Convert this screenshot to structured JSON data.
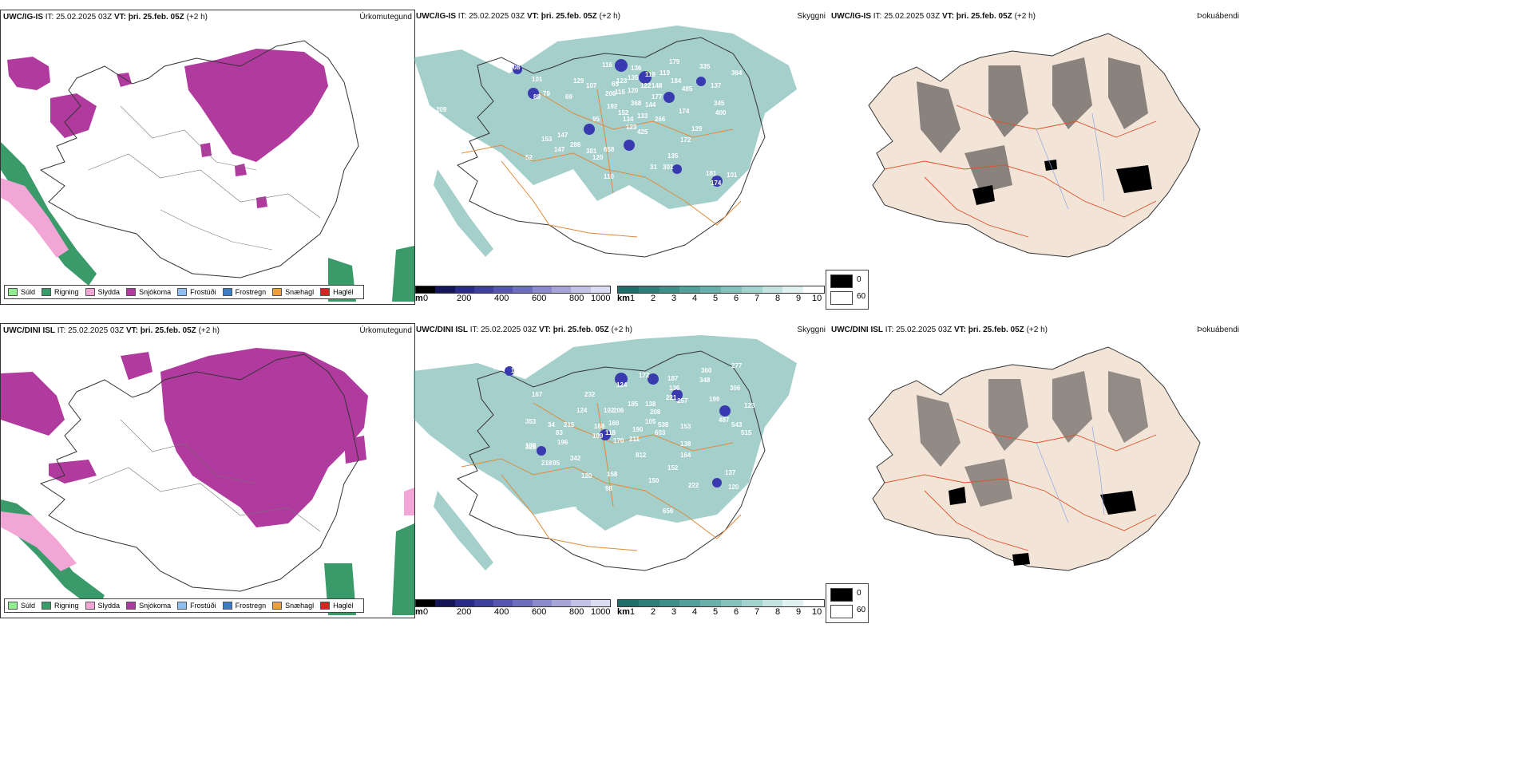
{
  "rows": [
    {
      "precip": {
        "model": "UWC/IG-IS",
        "it_label": "IT:",
        "it_value": "25.02.2025 03Z",
        "vt_label": "VT:",
        "vt_value": "þri. 25.feb. 05Z",
        "lead": "(+2 h)",
        "ptype_label": "Úrkomutegund"
      },
      "cloud": {
        "model": "UWC/IG-IS",
        "it_label": "IT:",
        "it_value": "25.02.2025 03Z",
        "vt_label": "VT:",
        "vt_value": "þri. 25.feb. 05Z",
        "lead": "(+2 h)",
        "right_label": "Skyggni",
        "labels": [
          "108",
          "101",
          "79",
          "209",
          "129",
          "116",
          "123",
          "206",
          "136",
          "135",
          "118",
          "119",
          "179",
          "184",
          "335",
          "364",
          "107",
          "65",
          "115",
          "120",
          "122",
          "148",
          "485",
          "137",
          "177",
          "88",
          "69",
          "192",
          "368",
          "144",
          "152",
          "133",
          "266",
          "174",
          "345",
          "400",
          "95",
          "134",
          "123",
          "425",
          "147",
          "129",
          "153",
          "147",
          "286",
          "381",
          "658",
          "172",
          "120",
          "52",
          "135",
          "301",
          "31",
          "110",
          "181",
          "174",
          "101"
        ]
      },
      "fog": {
        "model": "UWC/IG-IS",
        "it_label": "IT:",
        "it_value": "25.02.2025 03Z",
        "vt_label": "VT:",
        "vt_value": "þri. 25.feb. 05Z",
        "lead": "(+2 h)",
        "right_label": "Þokuábendi"
      }
    },
    {
      "precip": {
        "model": "UWC/DINI ISL",
        "it_label": "IT:",
        "it_value": "25.02.2025 03Z",
        "vt_label": "VT:",
        "vt_value": "þri. 25.feb. 05Z",
        "lead": "(+2 h)",
        "ptype_label": "Úrkomutegund"
      },
      "cloud": {
        "model": "UWC/DINI ISL",
        "it_label": "IT:",
        "it_value": "25.02.2025 03Z",
        "vt_label": "VT:",
        "vt_value": "þri. 25.feb. 05Z",
        "lead": "(+2 h)",
        "right_label": "Skyggni",
        "labels": [
          "58",
          "123",
          "167",
          "232",
          "124",
          "172",
          "187",
          "360",
          "277",
          "348",
          "306",
          "136",
          "221",
          "257",
          "199",
          "123",
          "353",
          "124",
          "102",
          "206",
          "185",
          "138",
          "487",
          "543",
          "208",
          "215",
          "83",
          "168",
          "109",
          "105",
          "538",
          "153",
          "34",
          "196",
          "160",
          "118",
          "190",
          "603",
          "515",
          "189",
          "328",
          "218",
          "342",
          "170",
          "211",
          "138",
          "95",
          "120",
          "812",
          "164",
          "158",
          "152",
          "98",
          "150",
          "42",
          "222",
          "137",
          "120",
          "656",
          "40",
          "301"
        ]
      },
      "fog": {
        "model": "UWC/DINI ISL",
        "it_label": "IT:",
        "it_value": "25.02.2025 03Z",
        "vt_label": "VT:",
        "vt_value": "þri. 25.feb. 05Z",
        "lead": "(+2 h)",
        "right_label": "Þokuábendi"
      }
    }
  ],
  "ptype_legend": [
    {
      "label": "Súld",
      "color": "#90ee90"
    },
    {
      "label": "Rigning",
      "color": "#3a9a6a"
    },
    {
      "label": "Slydda",
      "color": "#f2a6d6"
    },
    {
      "label": "Snjókoma",
      "color": "#b03a9e"
    },
    {
      "label": "Frostúði",
      "color": "#8fbdf0"
    },
    {
      "label": "Frostregn",
      "color": "#3d7cc4"
    },
    {
      "label": "Snæhagl",
      "color": "#f0a030"
    },
    {
      "label": "Haglél",
      "color": "#e02020"
    }
  ],
  "ceiling_bar": {
    "unit": "m",
    "ticks": [
      "0",
      "200",
      "400",
      "600",
      "800",
      "1000"
    ],
    "colors": [
      "#000000",
      "#15155a",
      "#2a2a8a",
      "#3f3fa0",
      "#5656b0",
      "#6e6ebe",
      "#8a8acc",
      "#a5a5d8",
      "#c2c2e6",
      "#dcdcf2"
    ]
  },
  "vis_bar": {
    "unit": "km",
    "ticks": [
      "1",
      "2",
      "3",
      "4",
      "5",
      "6",
      "7",
      "8",
      "9",
      "10"
    ],
    "colors": [
      "#1e6e6a",
      "#2e7f7a",
      "#3f8f89",
      "#53a09a",
      "#6ab0aa",
      "#86c2bc",
      "#a3d3ce",
      "#c2e3df",
      "#e0f1ef",
      "#ffffff"
    ]
  },
  "fog_legend": {
    "low": "0",
    "high": "60",
    "low_color": "#000000",
    "high_color": "#ffffff"
  },
  "colors": {
    "snow": "#b03a9e",
    "rain": "#3a9a6a",
    "sleet": "#f2a6d6",
    "teal": "#5aa8a0",
    "navy": "#3a3ab0",
    "road": "#e08a3a",
    "red_road": "#e0502a",
    "land_fog": "#f3e4d8"
  }
}
